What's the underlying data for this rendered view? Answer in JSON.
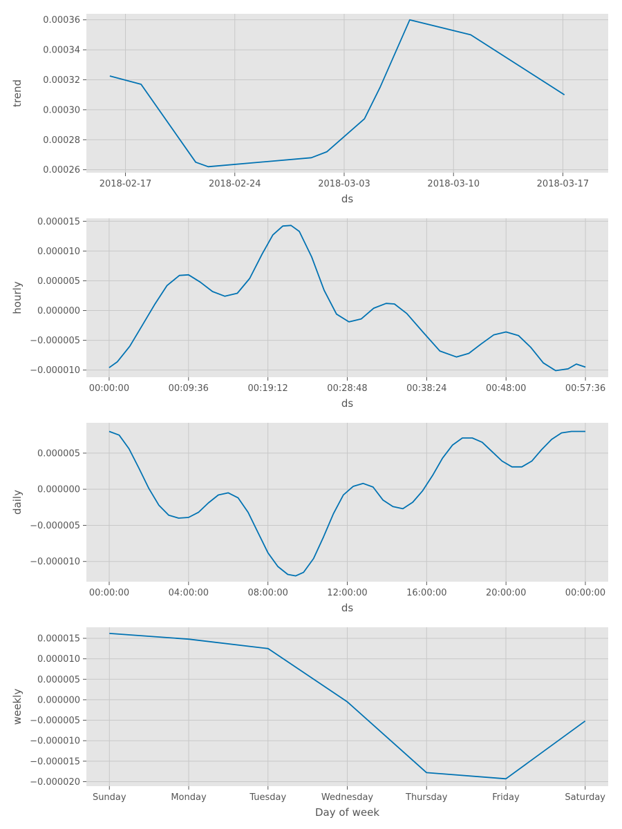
{
  "chart_data": [
    {
      "type": "line",
      "xlabel": "ds",
      "ylabel": "trend",
      "x_ticks": [
        "2018-02-17",
        "2018-02-24",
        "2018-03-03",
        "2018-03-10",
        "2018-03-17"
      ],
      "x_tick_values": [
        17,
        24,
        31,
        38,
        45
      ],
      "y_ticks": [
        "0.00026",
        "0.00028",
        "0.00030",
        "0.00032",
        "0.00034",
        "0.00036"
      ],
      "y_tick_values": [
        0.00026,
        0.00028,
        0.0003,
        0.00032,
        0.00034,
        0.00036
      ],
      "xlim": [
        14.5,
        47.9
      ],
      "ylim": [
        0.000258,
        0.000364
      ],
      "grid": true,
      "series": [
        {
          "x": [
            16.0,
            18.0,
            21.5,
            22.3,
            28.9,
            29.9,
            32.3,
            33.3,
            35.2,
            39.1,
            45.1
          ],
          "y": [
            0.0003225,
            0.000317,
            0.000265,
            0.000262,
            0.000268,
            0.000272,
            0.000294,
            0.000315,
            0.00036,
            0.00035,
            0.00031
          ]
        }
      ]
    },
    {
      "type": "line",
      "xlabel": "ds",
      "ylabel": "hourly",
      "x_ticks": [
        "00:00:00",
        "00:09:36",
        "00:19:12",
        "00:28:48",
        "00:38:24",
        "00:48:00",
        "00:57:36"
      ],
      "x_tick_values": [
        0,
        9.6,
        19.2,
        28.8,
        38.4,
        48,
        57.6
      ],
      "y_ticks": [
        "−0.000010",
        "−0.000005",
        "0.000000",
        "0.000005",
        "0.000010",
        "0.000015"
      ],
      "y_tick_values": [
        -1e-05,
        -5e-06,
        0,
        5e-06,
        1e-05,
        1.5e-05
      ],
      "xlim": [
        -2.75,
        60.35
      ],
      "ylim": [
        -1.12e-05,
        1.55e-05
      ],
      "grid": true,
      "series": [
        {
          "x": [
            0,
            1,
            2.5,
            4,
            5.5,
            7,
            8.5,
            9.6,
            11,
            12.5,
            14,
            15.5,
            17,
            18.5,
            19.8,
            21,
            22,
            23,
            24.5,
            26,
            27.5,
            29,
            30.5,
            32,
            33.5,
            34.5,
            36,
            38,
            40,
            42,
            43.5,
            45,
            46.5,
            48,
            49.5,
            51,
            52.5,
            54,
            55.5,
            56.5,
            57.6
          ],
          "y": [
            -9.6e-06,
            -8.6e-06,
            -6e-06,
            -2.5e-06,
            1e-06,
            4.2e-06,
            5.9e-06,
            6e-06,
            4.8e-06,
            3.2e-06,
            2.4e-06,
            2.9e-06,
            5.4e-06,
            9.5e-06,
            1.27e-05,
            1.42e-05,
            1.43e-05,
            1.33e-05,
            9e-06,
            3.4e-06,
            -6e-07,
            -1.9e-06,
            -1.4e-06,
            4e-07,
            1.2e-06,
            1.1e-06,
            -5e-07,
            -3.7e-06,
            -6.8e-06,
            -7.8e-06,
            -7.2e-06,
            -5.6e-06,
            -4.1e-06,
            -3.6e-06,
            -4.2e-06,
            -6.2e-06,
            -8.8e-06,
            -1.01e-05,
            -9.8e-06,
            -9e-06,
            -9.5e-06
          ]
        }
      ]
    },
    {
      "type": "line",
      "xlabel": "ds",
      "ylabel": "daily",
      "x_ticks": [
        "00:00:00",
        "04:00:00",
        "08:00:00",
        "12:00:00",
        "16:00:00",
        "20:00:00",
        "00:00:00"
      ],
      "x_tick_values": [
        0,
        4,
        8,
        12,
        16,
        20,
        24
      ],
      "y_ticks": [
        "−0.000010",
        "−0.000005",
        "0.000000",
        "0.000005"
      ],
      "y_tick_values": [
        -1e-05,
        -5e-06,
        0,
        5e-06
      ],
      "xlim": [
        -1.15,
        25.15
      ],
      "ylim": [
        -1.28e-05,
        9.2e-06
      ],
      "grid": true,
      "series": [
        {
          "x": [
            0,
            0.5,
            1,
            1.5,
            2,
            2.5,
            3,
            3.5,
            4,
            4.5,
            5,
            5.5,
            6,
            6.5,
            7,
            7.5,
            8,
            8.5,
            9,
            9.4,
            9.8,
            10.3,
            10.8,
            11.3,
            11.8,
            12.3,
            12.8,
            13.3,
            13.8,
            14.3,
            14.8,
            15.3,
            15.8,
            16.3,
            16.8,
            17.3,
            17.8,
            18.3,
            18.8,
            19.3,
            19.8,
            20.3,
            20.8,
            21.3,
            21.8,
            22.3,
            22.8,
            23.3,
            23.8,
            24
          ],
          "y": [
            8e-06,
            7.5e-06,
            5.6e-06,
            2.9e-06,
            1e-07,
            -2.2e-06,
            -3.6e-06,
            -4e-06,
            -3.9e-06,
            -3.2e-06,
            -1.9e-06,
            -8e-07,
            -5e-07,
            -1.2e-06,
            -3.2e-06,
            -6e-06,
            -8.8e-06,
            -1.07e-05,
            -1.18e-05,
            -1.2e-05,
            -1.15e-05,
            -9.6e-06,
            -6.6e-06,
            -3.4e-06,
            -8e-07,
            4e-07,
            8e-07,
            3e-07,
            -1.5e-06,
            -2.4e-06,
            -2.7e-06,
            -1.8e-06,
            -2e-07,
            1.9e-06,
            4.3e-06,
            6.1e-06,
            7.1e-06,
            7.1e-06,
            6.5e-06,
            5.2e-06,
            3.9e-06,
            3.1e-06,
            3.1e-06,
            3.9e-06,
            5.5e-06,
            6.9e-06,
            7.8e-06,
            8e-06,
            8e-06,
            8e-06
          ]
        }
      ]
    },
    {
      "type": "line",
      "xlabel": "Day of week",
      "ylabel": "weekly",
      "x_ticks": [
        "Sunday",
        "Monday",
        "Tuesday",
        "Wednesday",
        "Thursday",
        "Friday",
        "Saturday"
      ],
      "x_tick_values": [
        0,
        1,
        2,
        3,
        4,
        5,
        6
      ],
      "y_ticks": [
        "−0.000020",
        "−0.000015",
        "−0.000010",
        "−0.000005",
        "0.000000",
        "0.000005",
        "0.000010",
        "0.000015"
      ],
      "y_tick_values": [
        -2e-05,
        -1.5e-05,
        -1e-05,
        -5e-06,
        0,
        5e-06,
        1e-05,
        1.5e-05
      ],
      "xlim": [
        -0.29,
        6.29
      ],
      "ylim": [
        -2.11e-05,
        1.77e-05
      ],
      "grid": true,
      "series": [
        {
          "x": [
            0,
            1,
            2,
            3,
            4,
            5,
            6
          ],
          "y": [
            1.62e-05,
            1.48e-05,
            1.25e-05,
            -5e-07,
            -1.78e-05,
            -1.93e-05,
            -5.2e-06
          ]
        }
      ]
    }
  ]
}
